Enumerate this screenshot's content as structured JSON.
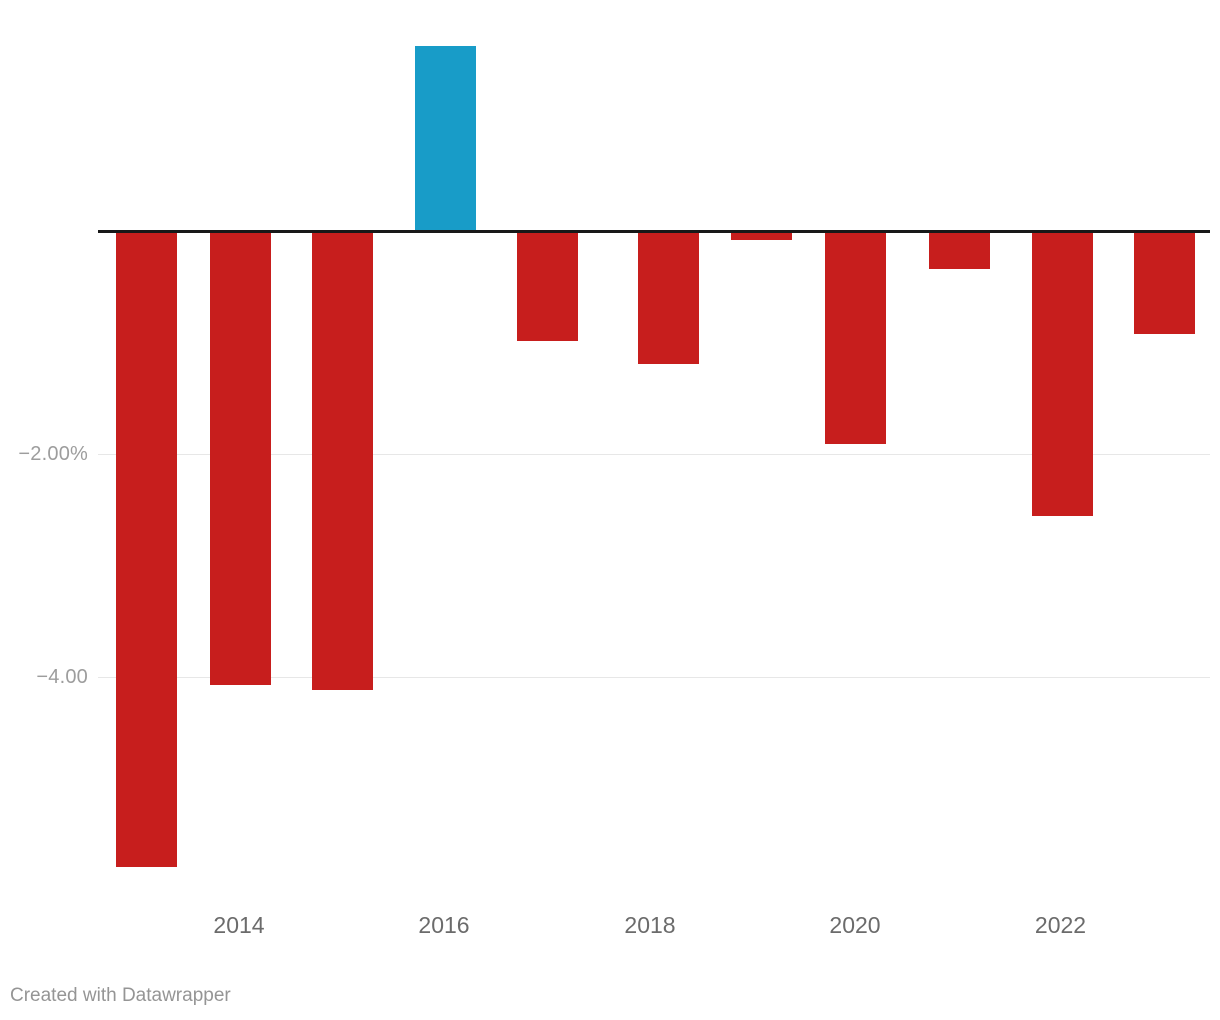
{
  "chart_data": {
    "type": "bar",
    "x": [
      2013,
      2014,
      2015,
      2016,
      2017,
      2018,
      2019,
      2020,
      2021,
      2022,
      2023
    ],
    "values": [
      -5.69,
      -4.06,
      -4.1,
      1.66,
      -0.97,
      -1.18,
      -0.07,
      -1.9,
      -0.33,
      -2.54,
      -0.91
    ],
    "series_name": "",
    "title": "",
    "xlabel": "",
    "ylabel": "",
    "ylim": [
      -6.1,
      2.1
    ],
    "grid": "horizontal",
    "legend": "none",
    "x_ticks": [
      {
        "label": "2014"
      },
      {
        "label": "2016"
      },
      {
        "label": "2018"
      },
      {
        "label": "2020"
      },
      {
        "label": "2022"
      }
    ],
    "y_ticks": [
      {
        "label": "−2.00%",
        "value": -2
      },
      {
        "label": "−4.00",
        "value": -4
      }
    ],
    "colors": {
      "positive_bar": "#189cc8",
      "negative_bar": "#c71e1d",
      "zero_axis": "#181818",
      "gridline": "#e7e7e7"
    }
  },
  "footer": {
    "credit": "Created with Datawrapper"
  }
}
